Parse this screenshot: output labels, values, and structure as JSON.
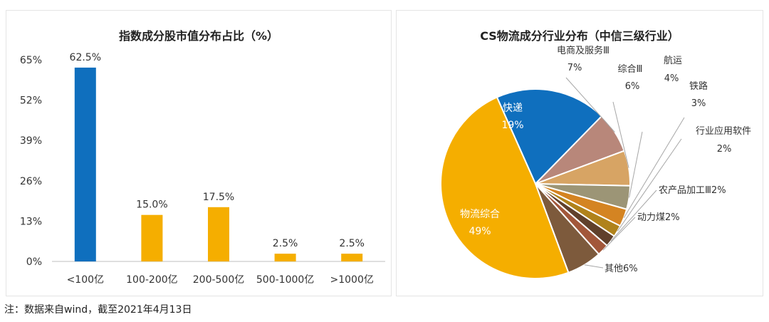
{
  "note": "注：数据来自wind，截至2021年4月13日",
  "chart_data": [
    {
      "type": "bar",
      "title": "指数成分股市值分布占比（%）",
      "categories": [
        "<100亿",
        "100-200亿",
        "200-500亿",
        "500-1000亿",
        ">1000亿"
      ],
      "values": [
        62.5,
        15.0,
        17.5,
        2.5,
        2.5
      ],
      "value_labels": [
        "62.5%",
        "15.0%",
        "17.5%",
        "2.5%",
        "2.5%"
      ],
      "ylim": [
        0,
        65
      ],
      "yticks": [
        0,
        13,
        26,
        39,
        52,
        65
      ],
      "ytick_labels": [
        "0%",
        "13%",
        "26%",
        "39%",
        "52%",
        "65%"
      ],
      "bar_colors": [
        "#0f6fbe",
        "#f5ae00",
        "#f5ae00",
        "#f5ae00",
        "#f5ae00"
      ],
      "grid": false
    },
    {
      "type": "pie",
      "title": "CS物流成分行业分布（中信三级行业）",
      "slices": [
        {
          "label": "快递",
          "value": 19,
          "value_label": "19%",
          "color": "#0f6fbe"
        },
        {
          "label": "电商及服务Ⅲ",
          "value": 7,
          "value_label": "7%",
          "color": "#b8877a"
        },
        {
          "label": "综合Ⅲ",
          "value": 6,
          "value_label": "6%",
          "color": "#d7a464"
        },
        {
          "label": "航运",
          "value": 4,
          "value_label": "4%",
          "color": "#9c9576"
        },
        {
          "label": "铁路",
          "value": 3,
          "value_label": "3%",
          "color": "#d48422"
        },
        {
          "label": "行业应用软件",
          "value": 2,
          "value_label": "2%",
          "color": "#b0821b"
        },
        {
          "label": "农产品加工Ⅲ",
          "value": 2,
          "value_label": "2%",
          "color": "#60402b"
        },
        {
          "label": "动力煤",
          "value": 2,
          "value_label": "2%",
          "color": "#a2573a"
        },
        {
          "label": "其他",
          "value": 6,
          "value_label": "6%",
          "color": "#7d5a3c"
        },
        {
          "label": "物流综合",
          "value": 49,
          "value_label": "49%",
          "color": "#f5ae00"
        }
      ]
    }
  ]
}
